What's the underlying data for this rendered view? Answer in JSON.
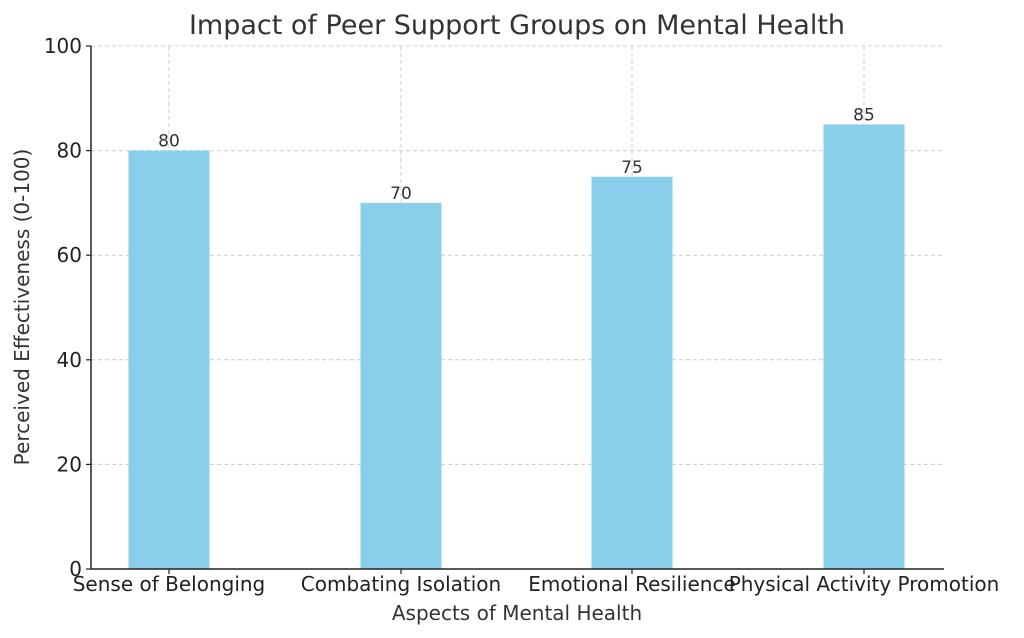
{
  "chart_data": {
    "type": "bar",
    "title": "Impact of Peer Support Groups on Mental Health",
    "xlabel": "Aspects of Mental Health",
    "ylabel": "Perceived Effectiveness (0-100)",
    "categories": [
      "Sense of Belonging",
      "Combating Isolation",
      "Emotional Resilience",
      "Physical Activity Promotion"
    ],
    "values": [
      80,
      70,
      75,
      85
    ],
    "ylim": [
      0,
      100
    ],
    "yticks": [
      0,
      20,
      40,
      60,
      80,
      100
    ],
    "grid": true,
    "bar_color": "#89CFEB"
  }
}
